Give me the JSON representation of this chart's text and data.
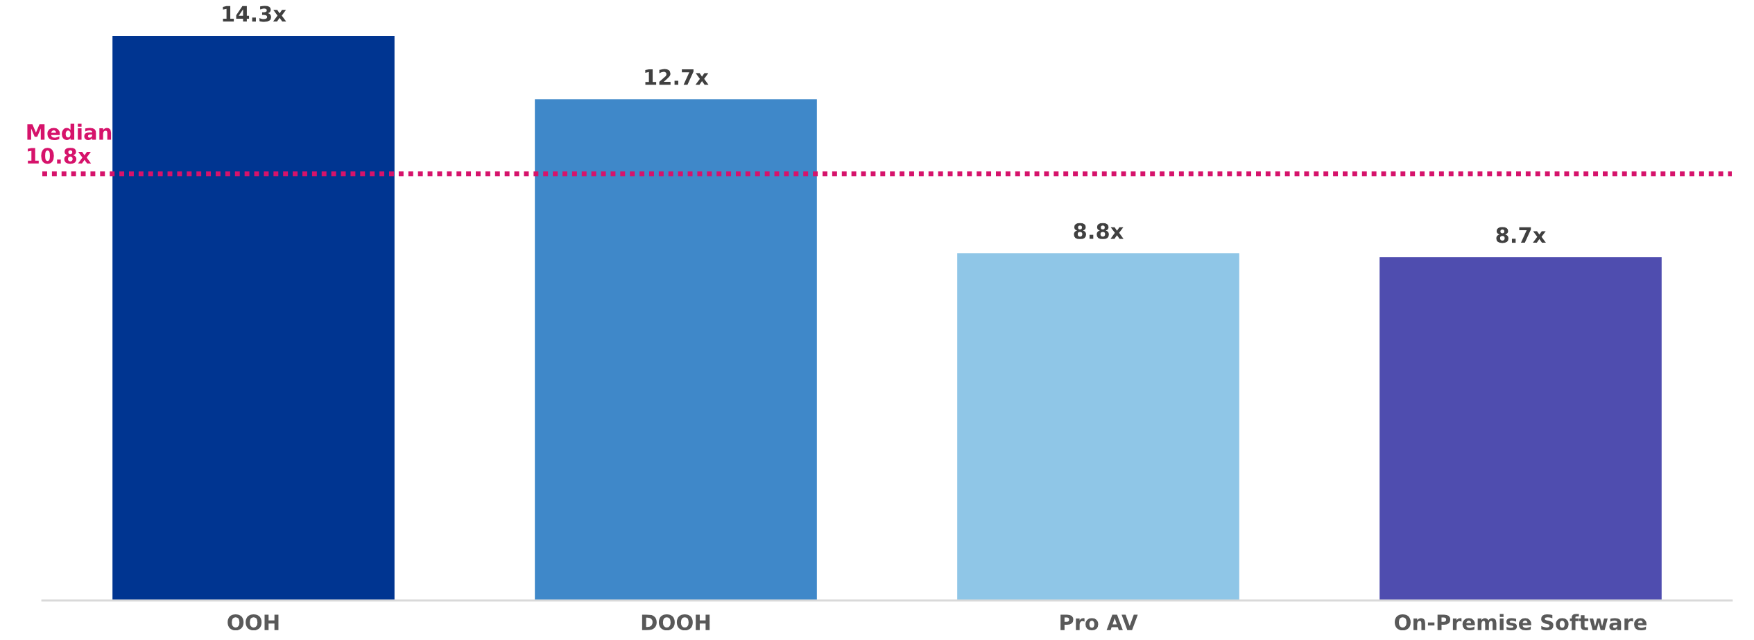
{
  "chart_data": {
    "type": "bar",
    "categories": [
      "OOH",
      "DOOH",
      "Pro AV",
      "On-Premise Software"
    ],
    "values": [
      14.3,
      12.7,
      8.8,
      8.7
    ],
    "colors": [
      "#003591",
      "#3f88c9",
      "#8fc6e7",
      "#4f4daf"
    ],
    "value_labels": [
      "14.3x",
      "12.7x",
      "8.8x",
      "8.7x"
    ],
    "tick_labels": "x",
    "grid": false,
    "legend": false,
    "ref_lines": [
      {
        "axis": "y",
        "value": 10.8,
        "label": "Median\n10.8x",
        "color": "#d6136b",
        "line_style": "dotted"
      }
    ]
  }
}
